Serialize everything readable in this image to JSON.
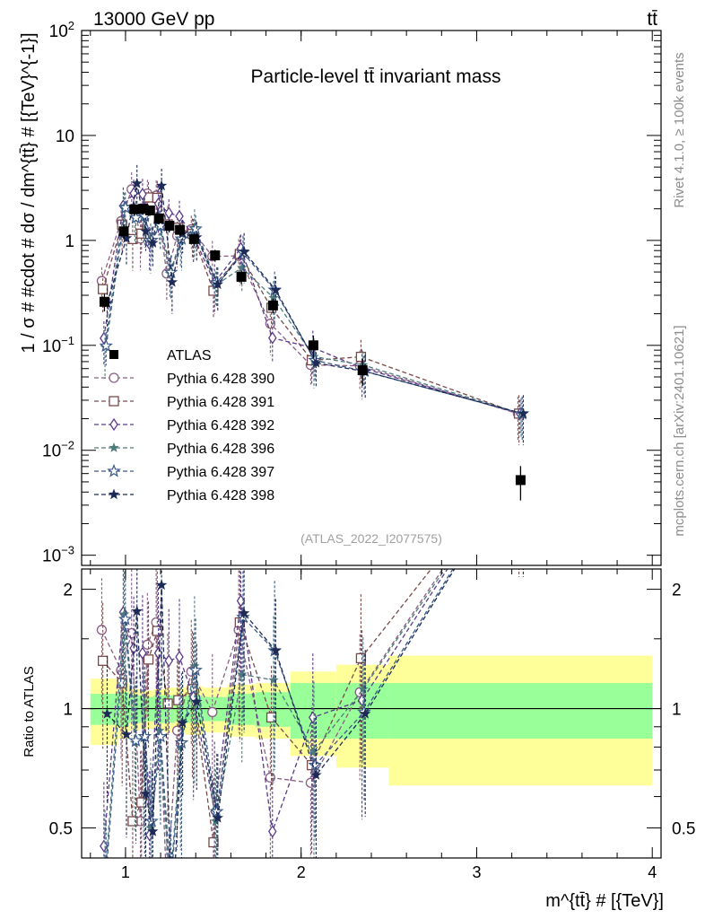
{
  "header": {
    "energy_label": "13000 GeV pp",
    "process_label": "tt̄"
  },
  "side_labels": {
    "rivet": "Rivet 4.1.0, ≥ 100k events",
    "mcplots": "mcplots.cern.ch [arXiv:2401.10621]"
  },
  "chart_data": {
    "type": "line",
    "title": "Particle-level tt̄ invariant mass",
    "analysis_id": "(ATLAS_2022_I2077575)",
    "ylabel": "1 / σ # #cdot # dσ / dm^{tt̄} # [{TeV}^{-1}]",
    "xlabel": "m^{tt̄} # [{TeV}]",
    "ratio_ylabel": "Ratio to ATLAS",
    "xlim": [
      0.75,
      4.05
    ],
    "ylim": [
      0.0008,
      100
    ],
    "yscale": "log",
    "ratio_ylim": [
      0.42,
      2.25
    ],
    "x_ticks": [
      1,
      2,
      3,
      4
    ],
    "x_tick_labels": [
      "1",
      "2",
      "3",
      "4"
    ],
    "y_ticks": [
      0.001,
      0.01,
      0.1,
      1,
      10,
      100
    ],
    "y_tick_labels": [
      {
        "base": "10",
        "exp": "−3"
      },
      {
        "base": "10",
        "exp": "−2"
      },
      {
        "base": "10",
        "exp": "−1"
      },
      {
        "base": "1",
        "exp": ""
      },
      {
        "base": "10",
        "exp": ""
      },
      {
        "base": "10",
        "exp": "2"
      }
    ],
    "ratio_ticks": [
      0.5,
      1,
      2
    ],
    "ratio_tick_labels": [
      "0.5",
      "1",
      "2"
    ],
    "bin_edges": [
      0.8,
      0.96,
      1.02,
      1.08,
      1.12,
      1.16,
      1.22,
      1.28,
      1.34,
      1.44,
      1.58,
      1.74,
      1.94,
      2.2,
      2.5,
      4.0
    ],
    "data": {
      "name": "ATLAS",
      "x": [
        0.88,
        0.99,
        1.05,
        1.1,
        1.14,
        1.19,
        1.25,
        1.31,
        1.39,
        1.51,
        1.66,
        1.84,
        2.07,
        2.35,
        3.25
      ],
      "values": [
        0.26,
        1.22,
        1.98,
        2.0,
        1.93,
        1.62,
        1.38,
        1.26,
        1.03,
        0.72,
        0.45,
        0.24,
        0.1,
        0.058,
        0.0052
      ],
      "band_inner": [
        0.09,
        0.1,
        0.08,
        0.08,
        0.07,
        0.08,
        0.08,
        0.07,
        0.08,
        0.07,
        0.09,
        0.1,
        0.16,
        0.16,
        0.16
      ],
      "band_outer": [
        0.19,
        0.16,
        0.12,
        0.11,
        0.11,
        0.12,
        0.13,
        0.13,
        0.14,
        0.13,
        0.15,
        0.16,
        0.24,
        0.29,
        0.36
      ],
      "marker": "square",
      "color": "#000000"
    },
    "series": [
      {
        "name": "Pythia 6.428 390",
        "color": "#8b5e83",
        "marker": "circle-open",
        "ratios": [
          1.58,
          1.25,
          1.55,
          0.52,
          1.45,
          1.65,
          0.35,
          0.88,
          1.24,
          0.98,
          1.58,
          0.67,
          0.65,
          1.1,
          4.3
        ]
      },
      {
        "name": "Pythia 6.428 391",
        "color": "#7a4a4a",
        "marker": "square-open",
        "ratios": [
          1.32,
          1.16,
          0.52,
          0.58,
          1.33,
          1.57,
          1.03,
          1.05,
          1.12,
          0.46,
          1.65,
          0.95,
          0.72,
          1.34,
          4.3
        ]
      },
      {
        "name": "Pythia 6.428 392",
        "color": "#5b3a8a",
        "marker": "diamond-open",
        "ratios": [
          0.45,
          1.75,
          1.42,
          1.38,
          0.48,
          1.38,
          1.32,
          1.35,
          1.07,
          0.55,
          1.87,
          0.49,
          0.95,
          1.05,
          4.3
        ]
      },
      {
        "name": "Pythia 6.428 396",
        "color": "#4d7b7c",
        "marker": "star-filled",
        "ratios": [
          0.37,
          1.73,
          0.82,
          0.85,
          0.5,
          0.88,
          0.35,
          0.8,
          1.28,
          0.52,
          1.22,
          1.18,
          0.78,
          1.12,
          4.3
        ]
      },
      {
        "name": "Pythia 6.428 397",
        "color": "#3a5a8a",
        "marker": "star-open",
        "ratios": [
          0.38,
          1.68,
          0.83,
          0.85,
          0.52,
          0.85,
          0.36,
          0.82,
          1.25,
          0.55,
          1.7,
          1.4,
          0.72,
          0.98,
          4.3
        ]
      },
      {
        "name": "Pythia 6.428 398",
        "color": "#1c2a55",
        "marker": "triangle-down-filled",
        "ratios": [
          0.97,
          0.86,
          1.76,
          0.61,
          0.49,
          2.05,
          0.29,
          0.92,
          1.04,
          0.53,
          1.74,
          1.4,
          0.68,
          0.97,
          4.3
        ]
      }
    ]
  }
}
